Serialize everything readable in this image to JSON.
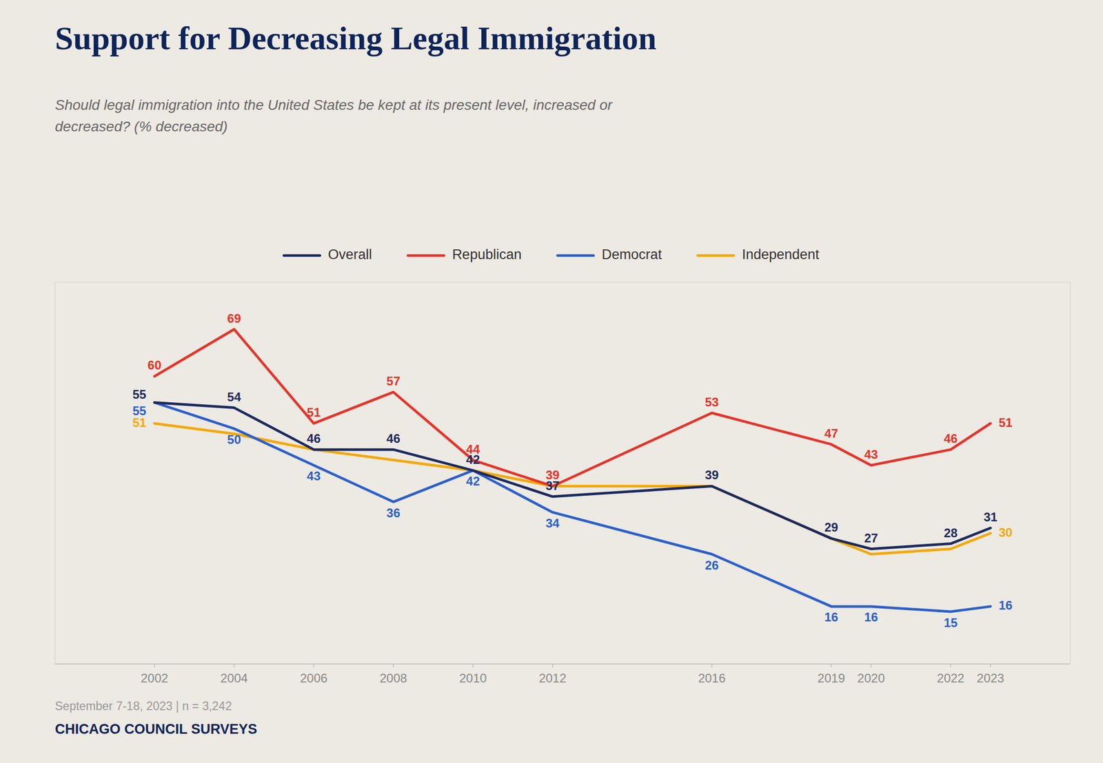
{
  "chart_data": {
    "type": "line",
    "title": "Support for Decreasing Legal Immigration",
    "subtitle": "Should legal immigration into the United States be kept at its present level, increased or\ndecreased? (% decreased)",
    "annotations": [
      "September 7-18, 2023 | n = 3,242",
      "CHICAGO COUNCIL SURVEYS"
    ],
    "x": [
      2002,
      2004,
      2006,
      2008,
      2010,
      2012,
      2016,
      2019,
      2020,
      2022,
      2023
    ],
    "series": [
      {
        "name": "Overall",
        "color": "#1b2a5e",
        "values": [
          55,
          54,
          46,
          46,
          42,
          37,
          39,
          29,
          27,
          28,
          31
        ]
      },
      {
        "name": "Republican",
        "color": "#e63329",
        "values": [
          60,
          69,
          51,
          57,
          44,
          39,
          53,
          47,
          43,
          46,
          51
        ]
      },
      {
        "name": "Democrat",
        "color": "#2b5fcc",
        "values": [
          55,
          50,
          43,
          36,
          42,
          34,
          26,
          16,
          16,
          15,
          16
        ]
      },
      {
        "name": "Independent",
        "color": "#f5a800",
        "values": [
          51,
          49,
          46,
          44,
          42,
          39,
          39,
          29,
          26,
          27,
          30
        ],
        "value_labels": [
          "51",
          null,
          null,
          null,
          null,
          null,
          null,
          null,
          null,
          null,
          "30"
        ]
      }
    ],
    "xlim": [
      1999.5,
      2025
    ],
    "xticks": [
      2002,
      2004,
      2006,
      2008,
      2010,
      2012,
      2016,
      2019,
      2020,
      2022,
      2023
    ],
    "ylim": [
      5,
      78
    ],
    "grid": false,
    "legend": "top",
    "data_labels": true,
    "tick_labels": "x"
  }
}
